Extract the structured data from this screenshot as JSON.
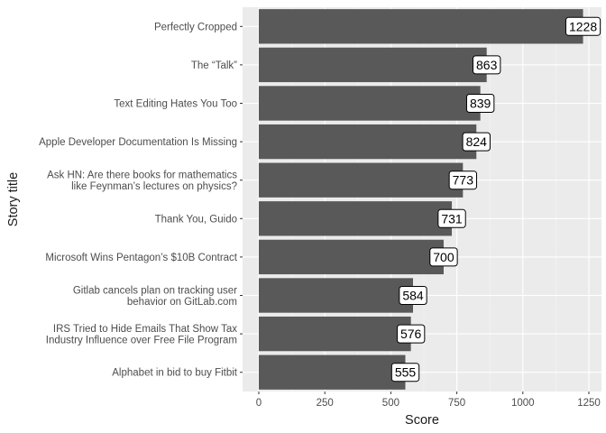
{
  "chart_data": {
    "type": "bar",
    "orientation": "horizontal",
    "xlabel": "Score",
    "ylabel": "Story title",
    "xlim": [
      0,
      1275
    ],
    "x_ticks": [
      0,
      250,
      500,
      750,
      1000,
      1250
    ],
    "x_tick_labels": [
      "0",
      "250",
      "500",
      "750",
      "1000",
      "1250"
    ],
    "grid": true,
    "categories": [
      [
        "Perfectly Cropped"
      ],
      [
        "The “Talk”"
      ],
      [
        "Text Editing Hates You Too"
      ],
      [
        "Apple Developer Documentation Is Missing"
      ],
      [
        "Ask HN: Are there books for mathematics",
        "like Feynman’s lectures on physics?"
      ],
      [
        "Thank You, Guido"
      ],
      [
        "Microsoft Wins Pentagon’s $10B Contract"
      ],
      [
        "Gitlab cancels plan on tracking user",
        "behavior on GitLab.com"
      ],
      [
        "IRS Tried to Hide Emails That Show Tax",
        "Industry Influence over Free File Program"
      ],
      [
        "Alphabet in bid to buy Fitbit"
      ]
    ],
    "values": [
      1228,
      863,
      839,
      824,
      773,
      731,
      700,
      584,
      576,
      555
    ],
    "data_labels": [
      "1228",
      "863",
      "839",
      "824",
      "773",
      "731",
      "700",
      "584",
      "576",
      "555"
    ],
    "colors": {
      "bar": "#595959",
      "panel": "#ebebeb",
      "grid_major": "#ffffff",
      "label_fill": "#ffffff",
      "label_border": "#000000"
    }
  }
}
